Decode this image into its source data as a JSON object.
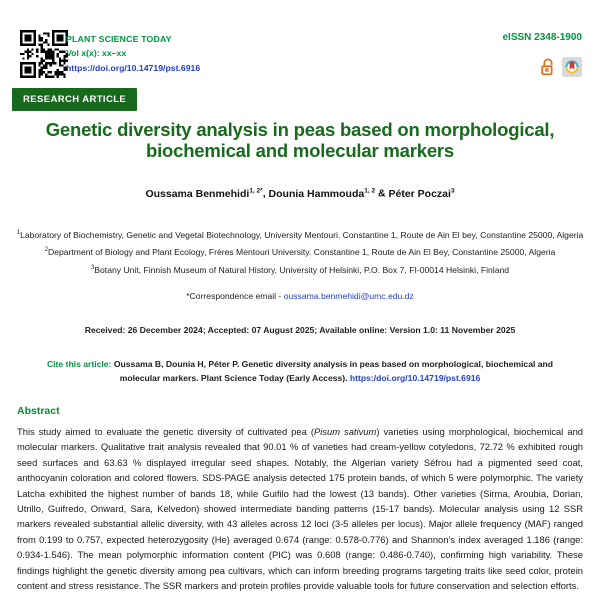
{
  "header": {
    "journal_name": "PLANT SCIENCE TODAY",
    "volume": "Vol x(x): xx–xx",
    "doi_url": "https://doi.org/10.14719/pst.6916",
    "eissn": "eISSN 2348-1900",
    "badge": "RESEARCH ARTICLE"
  },
  "article": {
    "title": "Genetic diversity analysis in peas based on morphological, biochemical and molecular markers",
    "authors": [
      {
        "name": "Oussama Benmehidi",
        "sup": "1, 2*"
      },
      {
        "name": "Dounia Hammouda",
        "sup": "1, 2"
      },
      {
        "name": "Péter Poczai",
        "sup": "3"
      }
    ],
    "author_separators": [
      ", ",
      " & "
    ],
    "affiliations": [
      {
        "sup": "1",
        "text": "Laboratory of Biochemistry, Genetic and Vegetal Biotechnology, University Mentouri. Constantine 1, Route de Ain El bey, Constantine 25000, Algeria"
      },
      {
        "sup": "2",
        "text": "Department of Biology and Plant Ecology, Frères Mentouri University. Constantine 1, Route de Ain El Bey, Constantine 25000, Algeria"
      },
      {
        "sup": "3",
        "text": "Botany Unit, Finnish Museum of Natural History, University of Helsinki, P.O. Box 7, FI-00014 Helsinki, Finland"
      }
    ],
    "correspondence_label": "*Correspondence email - ",
    "correspondence_email": "oussama.benmehidi@umc.edu.dz",
    "dates_line": "Received: 26 December 2024; Accepted: 07 August 2025; Available online: Version 1.0: 11 November 2025",
    "cite": {
      "label": "Cite this article:",
      "text": " Oussama B, Dounia H, Péter P. Genetic diversity analysis in peas based on morphological, biochemical and molecular markers. Plant Science Today (Early Access). ",
      "link": "https:/doi.org/10.14719/pst.6916"
    }
  },
  "abstract": {
    "heading": "Abstract",
    "pre": "This study aimed to evaluate the genetic diversity of cultivated pea (",
    "italic": "Pisum sativum",
    "post": ") varieties using morphological, biochemical and molecular markers. Qualitative trait analysis revealed that 90.01 % of varieties had cream-yellow cotyledons, 72.72 % exhibited rough seed surfaces and 63.63 % displayed irregular seed shapes. Notably, the Algerian variety Séfrou had a pigmented seed coat, anthocyanin coloration and colored flowers. SDS-PAGE analysis detected 175 protein bands, of which 5 were polymorphic. The variety Latcha exhibited the highest number of bands 18, while Guifilo had the lowest (13 bands). Other varieties (Sirma, Aroubia, Dorian, Utrillo, Guifredo, Onward, Sara, Kelvedon) showed intermediate banding patterns (15-17 bands). Molecular analysis using 12 SSR markers revealed substantial allelic diversity, with 43 alleles across 12 loci (3-5 alleles per locus). Major allele frequency (MAF) ranged from 0.199 to 0.757, expected heterozygosity (He) averaged 0.674 (range: 0.578-0.776) and Shannon's index averaged 1.186 (range: 0.934-1.546). The mean polymorphic information content (PIC) was 0.608 (range: 0.486-0.740), confirming high variability. These findings highlight the genetic diversity among pea cultivars, which can inform breeding programs targeting traits like seed color, protein content and stress resistance. The SSR markers and protein profiles provide valuable tools for future conservation and selection efforts."
  },
  "colors": {
    "journal_green": "#009640",
    "title_green": "#166b1c",
    "badge_green": "#17691e",
    "heading_green": "#0a8a34",
    "link_blue": "#2440cf",
    "oa_orange": "#e8701a",
    "bookmark_red": "#d23c32",
    "circle_teal": "#35b6d9",
    "circle_yellow": "#f0c330"
  }
}
